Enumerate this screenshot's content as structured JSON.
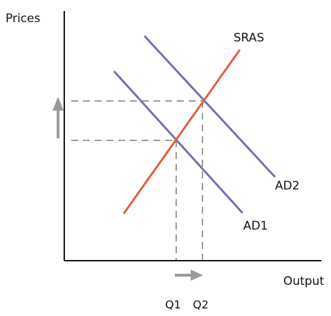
{
  "axes": {
    "y_label": "Prices",
    "x_label": "Output"
  },
  "curves": {
    "sras_label": "SRAS",
    "ad1_label": "AD1",
    "ad2_label": "AD2"
  },
  "quantities": {
    "q1_label": "Q1",
    "q2_label": "Q2"
  },
  "colors": {
    "axis": "#111111",
    "ad_lines": "#6f6fae",
    "sras_line": "#e8583e",
    "guide_lines": "#9a9a9a",
    "arrows": "#9a9a9a"
  }
}
